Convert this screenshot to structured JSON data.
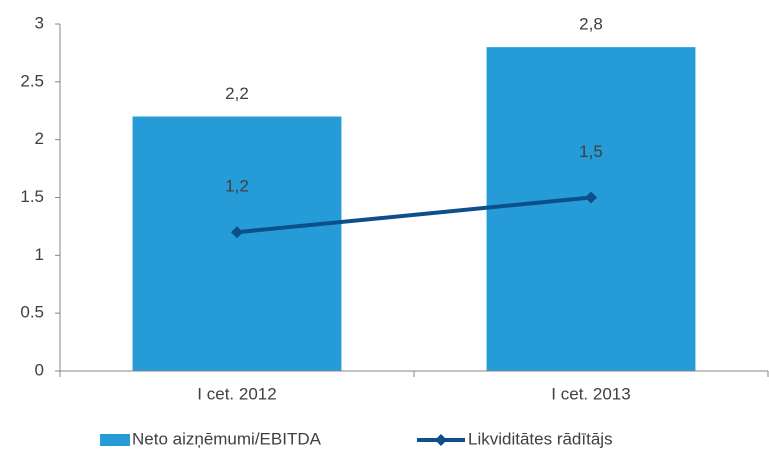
{
  "chart_data": {
    "type": "combo",
    "categories": [
      "I cet. 2012",
      "I cet. 2013"
    ],
    "series": [
      {
        "name": "Neto aizņēmumi/EBITDA",
        "type": "bar",
        "color": "#259bd8",
        "values": [
          2.2,
          2.8
        ],
        "value_labels": [
          "2,2",
          "2,8"
        ]
      },
      {
        "name": "Likviditātes rādītājs",
        "type": "line",
        "color": "#0d4f8b",
        "values": [
          1.2,
          1.5
        ],
        "value_labels": [
          "1,2",
          "1,5"
        ]
      }
    ],
    "ylim": [
      0,
      3
    ],
    "yticks": [
      0,
      0.5,
      1,
      1.5,
      2,
      2.5,
      3
    ],
    "grid": false,
    "legend": "bottom"
  }
}
